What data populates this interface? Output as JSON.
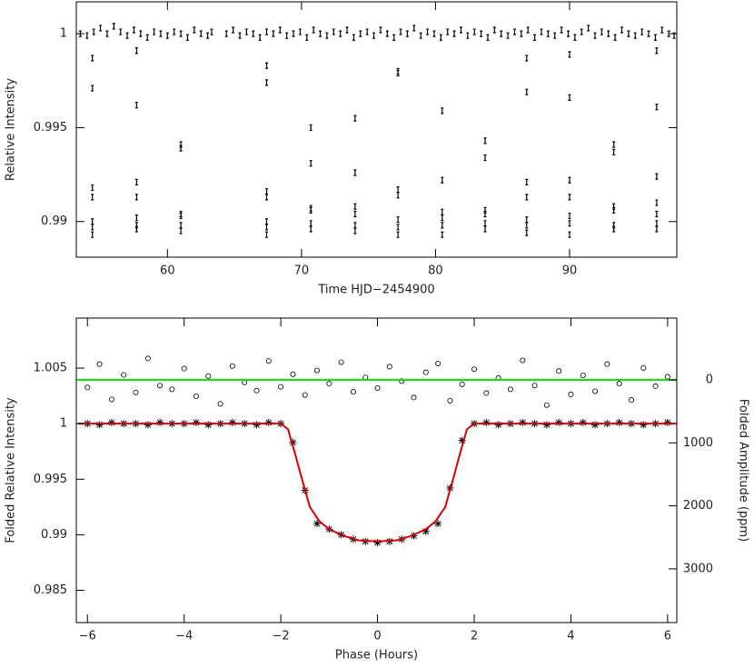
{
  "chart_data": [
    {
      "type": "scatter",
      "xlabel": "Time HJD−2454900",
      "ylabel": "Relative Intensity",
      "xlim": [
        53.2,
        98
      ],
      "ylim": [
        0.9881,
        1.0017
      ],
      "xticks": [
        60,
        70,
        80,
        90
      ],
      "yticks": [
        0.99,
        0.995,
        1
      ],
      "series": [
        {
          "color": "#000000",
          "style": "errorbar",
          "x": [
            53.5,
            54.0,
            54.5,
            55.0,
            55.5,
            56.0,
            56.5,
            57.0,
            57.5,
            58.0,
            58.5,
            59.0,
            59.5,
            60.0,
            60.5,
            61.0,
            61.5,
            62.0,
            62.5,
            63.0,
            63.3,
            64.4,
            64.9,
            65.4,
            65.9,
            66.4,
            66.9,
            67.4,
            67.9,
            68.4,
            68.9,
            69.4,
            69.9,
            70.4,
            70.9,
            71.4,
            71.9,
            72.4,
            72.9,
            73.4,
            73.9,
            74.4,
            74.9,
            75.4,
            75.9,
            76.4,
            76.9,
            77.4,
            77.9,
            78.4,
            78.9,
            79.4,
            79.9,
            80.4,
            80.9,
            81.4,
            81.9,
            82.4,
            82.9,
            83.4,
            83.9,
            84.4,
            84.9,
            85.4,
            85.9,
            86.4,
            86.9,
            87.4,
            87.9,
            88.4,
            88.9,
            89.4,
            89.9,
            90.4,
            90.9,
            91.4,
            91.9,
            92.4,
            92.9,
            93.4,
            93.9,
            94.4,
            94.9,
            95.4,
            95.9,
            96.4,
            96.9,
            97.4,
            97.8,
            54.4,
            54.4,
            54.4,
            54.4,
            54.4,
            54.4,
            54.4,
            57.7,
            57.7,
            57.7,
            57.7,
            57.7,
            57.7,
            57.7,
            61.0,
            61.0,
            61.0,
            61.0,
            61.0,
            61.0,
            67.4,
            67.4,
            67.4,
            67.4,
            67.4,
            67.4,
            67.4,
            70.7,
            70.7,
            70.7,
            70.7,
            70.7,
            70.7,
            74.0,
            74.0,
            74.0,
            74.0,
            74.0,
            74.0,
            77.2,
            77.2,
            77.2,
            77.2,
            77.2,
            77.2,
            77.2,
            80.5,
            80.5,
            80.5,
            80.5,
            80.5,
            80.5,
            83.7,
            83.7,
            83.7,
            83.7,
            83.7,
            83.7,
            86.8,
            86.8,
            86.8,
            86.8,
            86.8,
            86.8,
            86.8,
            90.0,
            90.0,
            90.0,
            90.0,
            90.0,
            90.0,
            90.0,
            93.3,
            93.3,
            93.3,
            93.3,
            93.3,
            93.3,
            96.5,
            96.5,
            96.5,
            96.5,
            96.5,
            96.5,
            96.5
          ],
          "values": [
            1.0,
            0.9999,
            1.0001,
            1.0003,
            1.0,
            1.0004,
            1.0001,
            0.9999,
            1.0002,
            1.0,
            0.9998,
            1.0001,
            1.0,
            0.9999,
            1.0001,
            1.0,
            0.9998,
            1.0002,
            1.0,
            0.9999,
            1.0001,
            1.0,
            1.0002,
            0.9999,
            1.0001,
            1.0,
            0.9998,
            1.0001,
            1.0,
            1.0002,
            0.9999,
            1.0,
            1.0001,
            0.9998,
            1.0002,
            1.0,
            0.9999,
            1.0001,
            1.0,
            1.0002,
            0.9998,
            1.0,
            1.0001,
            0.9999,
            1.0002,
            1.0,
            0.9998,
            1.0001,
            1.0,
            1.0003,
            0.9999,
            1.0001,
            1.0,
            0.9998,
            1.0001,
            1.0,
            1.0002,
            0.9999,
            1.0001,
            1.0,
            0.9998,
            1.0002,
            1.0,
            0.9999,
            1.0001,
            1.0,
            1.0002,
            0.9998,
            1.0001,
            1.0,
            0.9999,
            1.0002,
            1.0,
            0.9998,
            1.0001,
            1.0003,
            0.9999,
            1.0001,
            1.0,
            0.9998,
            1.0002,
            1.0,
            0.9999,
            1.0001,
            1.0,
            0.9998,
            1.0002,
            1.0,
            0.9999,
            0.9971,
            0.9987,
            0.9918,
            0.9913,
            0.99,
            0.9897,
            0.9893,
            0.9991,
            0.9962,
            0.9921,
            0.9913,
            0.9902,
            0.9898,
            0.9896,
            0.9941,
            0.9939,
            0.9904,
            0.9903,
            0.9898,
            0.9895,
            0.9983,
            0.9974,
            0.9916,
            0.9913,
            0.99,
            0.9897,
            0.9893,
            0.995,
            0.9931,
            0.9907,
            0.9906,
            0.9899,
            0.9896,
            0.9955,
            0.9926,
            0.9908,
            0.9904,
            0.9898,
            0.9895,
            0.998,
            0.9979,
            0.9917,
            0.9914,
            0.9901,
            0.9897,
            0.9893,
            0.9959,
            0.9922,
            0.9905,
            0.9902,
            0.9898,
            0.9893,
            0.9943,
            0.9934,
            0.9906,
            0.9904,
            0.9899,
            0.9896,
            0.9987,
            0.9969,
            0.9921,
            0.9913,
            0.9901,
            0.9898,
            0.9894,
            0.9989,
            0.9966,
            0.9922,
            0.9913,
            0.9903,
            0.9899,
            0.9893,
            0.9941,
            0.9937,
            0.9908,
            0.9906,
            0.9898,
            0.9896,
            0.9991,
            0.9961,
            0.9924,
            0.991,
            0.9904,
            0.9899,
            0.9896
          ]
        }
      ]
    },
    {
      "type": "scatter",
      "xlabel": "Phase (Hours)",
      "ylabel": "Folded Relative Intensity",
      "y2label": "Folded Amplitude (ppm)",
      "xlim": [
        -6.23,
        6.19
      ],
      "ylim": [
        0.9821,
        1.0095
      ],
      "y2lim": [
        3853,
        -981
      ],
      "xticks": [
        {
          "value": -6,
          "label": "−6"
        },
        {
          "value": -4,
          "label": "−4"
        },
        {
          "value": -2,
          "label": "−2"
        },
        0,
        2,
        4,
        6
      ],
      "yticks": [
        0.985,
        0.99,
        0.995,
        1,
        1.005
      ],
      "y2ticks": [
        0,
        1000,
        2000,
        3000
      ],
      "reference_lines": [
        {
          "value": 0,
          "axis": "y2",
          "color": "#00ee00"
        }
      ],
      "series": [
        {
          "color": "#000000",
          "style": "circle",
          "axis": "y2",
          "x": [
            -6,
            -5.75,
            -5.5,
            -5.25,
            -5,
            -4.75,
            -4.5,
            -4.25,
            -4,
            -3.75,
            -3.5,
            -3.25,
            -3,
            -2.75,
            -2.5,
            -2.25,
            -2,
            -1.75,
            -1.5,
            -1.25,
            -1,
            -0.75,
            -0.5,
            -0.25,
            0,
            0.25,
            0.5,
            0.75,
            1,
            1.25,
            1.5,
            1.75,
            2,
            2.25,
            2.5,
            2.75,
            3,
            3.25,
            3.5,
            3.75,
            4,
            4.25,
            4.5,
            4.75,
            5,
            5.25,
            5.5,
            5.75,
            6
          ],
          "values": [
            120,
            -250,
            310,
            -80,
            200,
            -340,
            90,
            150,
            -180,
            260,
            -60,
            380,
            -220,
            40,
            170,
            -300,
            110,
            -90,
            240,
            -150,
            60,
            -280,
            190,
            -40,
            130,
            -210,
            20,
            280,
            -120,
            -260,
            330,
            70,
            -170,
            210,
            -30,
            150,
            -310,
            90,
            400,
            -140,
            230,
            -70,
            180,
            -250,
            60,
            320,
            -190,
            100,
            -50
          ]
        },
        {
          "color": "#000000",
          "style": "asterisk",
          "x": [
            -6,
            -5.75,
            -5.5,
            -5.25,
            -5,
            -4.75,
            -4.5,
            -4.25,
            -4,
            -3.75,
            -3.5,
            -3.25,
            -3,
            -2.75,
            -2.5,
            -2.25,
            -2,
            -1.75,
            -1.5,
            -1.25,
            -1,
            -0.75,
            -0.5,
            -0.25,
            0,
            0.25,
            0.5,
            0.75,
            1,
            1.25,
            1.5,
            1.75,
            2,
            2.25,
            2.5,
            2.75,
            3,
            3.25,
            3.5,
            3.75,
            4,
            4.25,
            4.5,
            4.75,
            5,
            5.25,
            5.5,
            5.75,
            6
          ],
          "values": [
            1.0,
            0.9999,
            1.0001,
            1.0,
            1.0,
            0.9999,
            1.0001,
            1.0,
            1.0,
            1.0001,
            0.9999,
            1.0,
            1.0001,
            1.0,
            0.9999,
            1.0001,
            1.0,
            0.9983,
            0.994,
            0.991,
            0.9905,
            0.99,
            0.9896,
            0.9894,
            0.9893,
            0.9894,
            0.9896,
            0.9899,
            0.9903,
            0.991,
            0.9942,
            0.9985,
            1.0,
            1.0001,
            0.9999,
            1.0,
            1.0001,
            1.0,
            0.9999,
            1.0001,
            1.0,
            1.0001,
            0.9999,
            1.0,
            1.0001,
            1.0,
            0.9999,
            1.0,
            1.0001
          ]
        },
        {
          "color": "#dd0000",
          "style": "line",
          "x": [
            -6.2,
            -2,
            -1.85,
            -1.7,
            -1.55,
            -1.4,
            -1.2,
            -1,
            -0.7,
            -0.4,
            0,
            0.4,
            0.7,
            1,
            1.2,
            1.4,
            1.55,
            1.7,
            1.85,
            2,
            6.2
          ],
          "values": [
            1,
            1,
            0.9995,
            0.9972,
            0.9948,
            0.9925,
            0.9912,
            0.9905,
            0.9899,
            0.9895,
            0.9894,
            0.9895,
            0.9899,
            0.9905,
            0.9912,
            0.9925,
            0.9948,
            0.9972,
            0.9995,
            1,
            1
          ]
        }
      ]
    }
  ]
}
